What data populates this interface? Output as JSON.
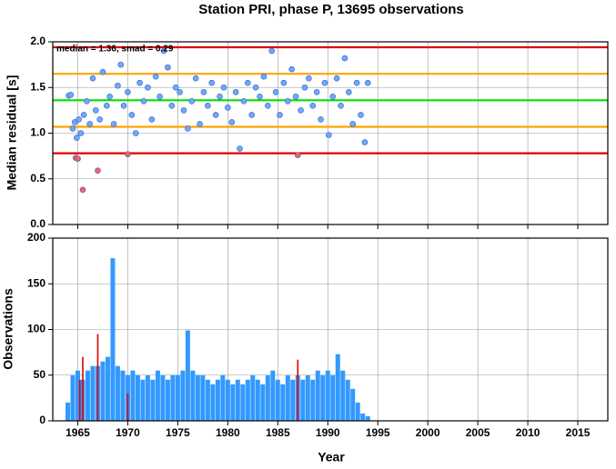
{
  "chart_data": [
    {
      "type": "scatter",
      "title": "Station PRI, phase P, 13695 observations",
      "annotation": "median = 1.36, smad = 0.29",
      "ylabel": "Median residual [s]",
      "xlim": [
        1962.5,
        2018
      ],
      "ylim": [
        0,
        2
      ],
      "xticks": [
        1965,
        1970,
        1975,
        1980,
        1985,
        1990,
        1995,
        2000,
        2005,
        2010,
        2015
      ],
      "yticks": [
        {
          "value": 0,
          "label": "0.0"
        },
        {
          "value": 0.5,
          "label": "0.5"
        },
        {
          "value": 1,
          "label": "1.0"
        },
        {
          "value": 1.5,
          "label": "1.5"
        },
        {
          "value": 2,
          "label": "2.0"
        }
      ],
      "grid": true,
      "reference_lines": [
        {
          "value": 1.94,
          "color": "#e00000"
        },
        {
          "value": 1.65,
          "color": "#ffa500"
        },
        {
          "value": 1.36,
          "color": "#00e000"
        },
        {
          "value": 1.07,
          "color": "#ffa500"
        },
        {
          "value": 0.78,
          "color": "#e00000"
        }
      ],
      "series": [
        {
          "color": "#6fa8ff",
          "x": [
            1964.1,
            1964.3,
            1964.5,
            1964.7,
            1964.9,
            1965.1,
            1965.3,
            1965.6,
            1965.9,
            1966.2,
            1966.5,
            1966.8,
            1967.2,
            1967.5,
            1967.9,
            1968.2,
            1968.6,
            1969.0,
            1969.3,
            1969.6,
            1970.0,
            1970.4,
            1970.8,
            1971.2,
            1971.6,
            1972.0,
            1972.4,
            1972.8,
            1973.2,
            1973.6,
            1974.0,
            1974.4,
            1974.8,
            1975.2,
            1975.6,
            1976.0,
            1976.4,
            1976.8,
            1977.2,
            1977.6,
            1978.0,
            1978.4,
            1978.8,
            1979.2,
            1979.6,
            1980.0,
            1980.4,
            1980.8,
            1981.2,
            1981.6,
            1982.0,
            1982.4,
            1982.8,
            1983.2,
            1983.6,
            1984.0,
            1984.4,
            1984.8,
            1985.2,
            1985.6,
            1986.0,
            1986.4,
            1986.8,
            1987.3,
            1987.7,
            1988.1,
            1988.5,
            1988.9,
            1989.3,
            1989.7,
            1990.1,
            1990.5,
            1990.9,
            1991.3,
            1991.7,
            1992.1,
            1992.5,
            1992.9,
            1993.3,
            1993.7,
            1994.0
          ],
          "values": [
            1.41,
            1.42,
            1.05,
            1.12,
            0.95,
            1.15,
            1.0,
            1.2,
            1.35,
            1.1,
            1.6,
            1.25,
            1.15,
            1.67,
            1.3,
            1.4,
            1.1,
            1.52,
            1.75,
            1.3,
            1.45,
            1.2,
            1.0,
            1.55,
            1.35,
            1.5,
            1.15,
            1.62,
            1.4,
            1.9,
            1.72,
            1.3,
            1.5,
            1.45,
            1.25,
            1.05,
            1.35,
            1.6,
            1.1,
            1.45,
            1.3,
            1.55,
            1.2,
            1.4,
            1.5,
            1.28,
            1.12,
            1.45,
            0.83,
            1.35,
            1.55,
            1.2,
            1.5,
            1.4,
            1.62,
            1.3,
            1.9,
            1.45,
            1.2,
            1.55,
            1.35,
            1.7,
            1.4,
            1.25,
            1.5,
            1.6,
            1.3,
            1.45,
            1.15,
            1.55,
            0.98,
            1.4,
            1.6,
            1.3,
            1.82,
            1.45,
            1.1,
            1.55,
            1.2,
            0.9,
            1.55
          ]
        },
        {
          "color": "#ff6060",
          "x": [
            1964.8,
            1965.0,
            1965.5,
            1967.0,
            1970.0,
            1987.0
          ],
          "values": [
            0.73,
            0.72,
            0.38,
            0.59,
            0.77,
            0.76
          ]
        }
      ]
    },
    {
      "type": "bar",
      "ylabel": "Observations",
      "xlabel": "Year",
      "xlim": [
        1962.5,
        2018
      ],
      "ylim": [
        0,
        200
      ],
      "xticks": [
        1965,
        1970,
        1975,
        1980,
        1985,
        1990,
        1995,
        2000,
        2005,
        2010,
        2015
      ],
      "yticks": [
        0,
        50,
        100,
        150,
        200
      ],
      "grid": true,
      "series": [
        {
          "color": "#3399ff",
          "x": [
            1964.0,
            1964.5,
            1965.0,
            1965.5,
            1966.0,
            1966.5,
            1967.0,
            1967.5,
            1968.0,
            1968.5,
            1969.0,
            1969.5,
            1970.0,
            1970.5,
            1971.0,
            1971.5,
            1972.0,
            1972.5,
            1973.0,
            1973.5,
            1974.0,
            1974.5,
            1975.0,
            1975.5,
            1976.0,
            1976.5,
            1977.0,
            1977.5,
            1978.0,
            1978.5,
            1979.0,
            1979.5,
            1980.0,
            1980.5,
            1981.0,
            1981.5,
            1982.0,
            1982.5,
            1983.0,
            1983.5,
            1984.0,
            1984.5,
            1985.0,
            1985.5,
            1986.0,
            1986.5,
            1987.0,
            1987.5,
            1988.0,
            1988.5,
            1989.0,
            1989.5,
            1990.0,
            1990.5,
            1991.0,
            1991.5,
            1992.0,
            1992.5,
            1993.0,
            1993.5,
            1994.0
          ],
          "values": [
            20,
            50,
            55,
            45,
            55,
            60,
            60,
            65,
            70,
            178,
            60,
            55,
            50,
            55,
            50,
            45,
            50,
            45,
            55,
            50,
            45,
            50,
            50,
            55,
            99,
            55,
            50,
            50,
            45,
            40,
            45,
            50,
            45,
            40,
            45,
            40,
            45,
            50,
            45,
            40,
            50,
            55,
            45,
            40,
            50,
            45,
            50,
            45,
            50,
            45,
            55,
            50,
            55,
            50,
            73,
            55,
            45,
            35,
            20,
            8,
            5
          ]
        },
        {
          "color": "#e00000",
          "thin": true,
          "x": [
            1965.2,
            1965.5,
            1967.0,
            1970.0,
            1987.0
          ],
          "values": [
            45,
            70,
            95,
            30,
            67
          ]
        }
      ]
    }
  ]
}
